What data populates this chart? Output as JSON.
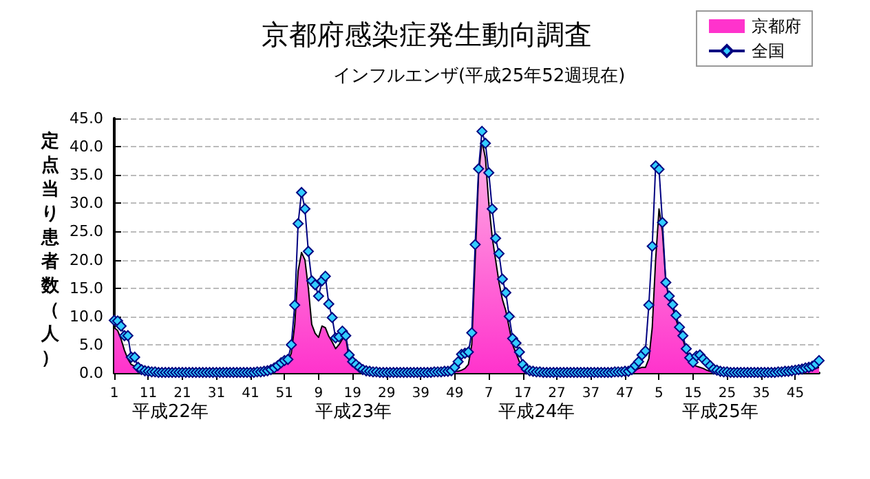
{
  "chart_data": {
    "type": "line",
    "title": "京都府感染症発生動向調査",
    "subtitle": "インフルエンザ(平成25年52週現在)",
    "ylabel": "定点当り患者数（人）",
    "annotations": [
      "平成22年",
      "平成23年",
      "平成24年",
      "平成25年"
    ],
    "categories": [
      "1",
      null,
      null,
      null,
      null,
      null,
      null,
      null,
      null,
      null,
      "11",
      null,
      null,
      null,
      null,
      null,
      null,
      null,
      null,
      null,
      "21",
      null,
      null,
      null,
      null,
      null,
      null,
      null,
      null,
      null,
      "31",
      null,
      null,
      null,
      null,
      null,
      null,
      null,
      null,
      null,
      "41",
      null,
      null,
      null,
      null,
      null,
      null,
      null,
      null,
      null,
      "51",
      null,
      null,
      null,
      null,
      null,
      null,
      null,
      null,
      null,
      "9",
      null,
      null,
      null,
      null,
      null,
      null,
      null,
      null,
      null,
      "19",
      null,
      null,
      null,
      null,
      null,
      null,
      null,
      null,
      null,
      "29",
      null,
      null,
      null,
      null,
      null,
      null,
      null,
      null,
      null,
      "39",
      null,
      null,
      null,
      null,
      null,
      null,
      null,
      null,
      null,
      "49",
      null,
      null,
      null,
      null,
      null,
      null,
      null,
      null,
      null,
      "7",
      null,
      null,
      null,
      null,
      null,
      null,
      null,
      null,
      null,
      "17",
      null,
      null,
      null,
      null,
      null,
      null,
      null,
      null,
      null,
      "27",
      null,
      null,
      null,
      null,
      null,
      null,
      null,
      null,
      null,
      "37",
      null,
      null,
      null,
      null,
      null,
      null,
      null,
      null,
      null,
      "47",
      null,
      null,
      null,
      null,
      null,
      null,
      null,
      null,
      null,
      "5",
      null,
      null,
      null,
      null,
      null,
      null,
      null,
      null,
      null,
      "15",
      null,
      null,
      null,
      null,
      null,
      null,
      null,
      null,
      null,
      "25",
      null,
      null,
      null,
      null,
      null,
      null,
      null,
      null,
      null,
      "35",
      null,
      null,
      null,
      null,
      null,
      null,
      null,
      null,
      null,
      "45",
      null,
      null,
      null,
      null,
      null,
      null,
      null
    ],
    "series": [
      {
        "name": "京都府",
        "type": "area",
        "color": "#ff33cc",
        "values": [
          8.0,
          7.5,
          6.0,
          4.0,
          2.5,
          1.5,
          1.2,
          0.8,
          0.5,
          0.3,
          0.2,
          0.1,
          0.1,
          0.1,
          0.1,
          0.1,
          0.1,
          0.1,
          0.1,
          0.1,
          0.1,
          0.1,
          0.1,
          0.1,
          0.1,
          0.1,
          0.1,
          0.1,
          0.1,
          0.1,
          0.1,
          0.1,
          0.1,
          0.1,
          0.1,
          0.1,
          0.1,
          0.1,
          0.1,
          0.1,
          0.1,
          0.1,
          0.1,
          0.1,
          0.1,
          0.1,
          0.3,
          0.5,
          0.8,
          1.2,
          1.5,
          2.0,
          3.5,
          8.5,
          18.0,
          21.3,
          20.0,
          15.0,
          8.6,
          7.0,
          6.3,
          8.3,
          8.0,
          6.5,
          5.5,
          4.3,
          5.0,
          6.0,
          6.2,
          2.5,
          1.5,
          0.8,
          0.4,
          0.2,
          0.1,
          0.1,
          0.1,
          0.1,
          0.1,
          0.1,
          0.1,
          0.1,
          0.1,
          0.1,
          0.1,
          0.1,
          0.1,
          0.1,
          0.1,
          0.1,
          0.1,
          0.1,
          0.1,
          0.1,
          0.1,
          0.1,
          0.1,
          0.1,
          0.1,
          0.1,
          0.3,
          0.3,
          0.5,
          0.8,
          1.5,
          5.0,
          20.0,
          35.0,
          41.0,
          38.0,
          30.0,
          24.0,
          20.0,
          16.0,
          13.0,
          11.0,
          8.0,
          5.0,
          3.5,
          2.0,
          0.8,
          0.3,
          0.2,
          0.1,
          0.1,
          0.1,
          0.1,
          0.1,
          0.1,
          0.1,
          0.1,
          0.1,
          0.1,
          0.1,
          0.1,
          0.1,
          0.1,
          0.1,
          0.1,
          0.1,
          0.1,
          0.1,
          0.1,
          0.1,
          0.1,
          0.1,
          0.1,
          0.1,
          0.1,
          0.1,
          0.1,
          0.2,
          0.3,
          0.5,
          0.8,
          1.0,
          1.0,
          2.5,
          8.0,
          20.0,
          29.0,
          25.0,
          16.0,
          13.0,
          11.5,
          9.5,
          7.5,
          6.0,
          4.0,
          2.5,
          1.5,
          1.2,
          1.0,
          0.8,
          0.5,
          0.3,
          0.2,
          0.1,
          0.1,
          0.1,
          0.1,
          0.1,
          0.1,
          0.1,
          0.1,
          0.1,
          0.1,
          0.1,
          0.1,
          0.1,
          0.1,
          0.1,
          0.1,
          0.1,
          0.1,
          0.1,
          0.1,
          0.1,
          0.1,
          0.1,
          0.1,
          0.2,
          0.2,
          0.3,
          0.4,
          0.5,
          0.8,
          1.0
        ]
      },
      {
        "name": "全国",
        "color": "#33ccff",
        "marker": "diamond",
        "values": [
          9.3,
          9.2,
          8.3,
          6.6,
          6.6,
          2.8,
          2.8,
          1.0,
          0.6,
          0.4,
          0.3,
          0.2,
          0.2,
          0.1,
          0.1,
          0.1,
          0.1,
          0.1,
          0.1,
          0.1,
          0.1,
          0.1,
          0.1,
          0.1,
          0.1,
          0.1,
          0.1,
          0.1,
          0.1,
          0.1,
          0.1,
          0.1,
          0.1,
          0.1,
          0.1,
          0.1,
          0.1,
          0.1,
          0.1,
          0.1,
          0.1,
          0.1,
          0.2,
          0.2,
          0.3,
          0.4,
          0.6,
          0.9,
          1.3,
          1.8,
          2.2,
          2.4,
          5.0,
          12.0,
          26.4,
          31.9,
          29.0,
          21.5,
          16.3,
          15.6,
          13.6,
          16.3,
          17.1,
          12.2,
          9.8,
          6.2,
          6.4,
          7.4,
          6.6,
          3.2,
          2.0,
          1.5,
          1.0,
          0.6,
          0.4,
          0.3,
          0.2,
          0.2,
          0.1,
          0.1,
          0.1,
          0.1,
          0.1,
          0.1,
          0.1,
          0.1,
          0.1,
          0.1,
          0.1,
          0.1,
          0.1,
          0.1,
          0.1,
          0.1,
          0.2,
          0.2,
          0.2,
          0.3,
          0.3,
          0.4,
          1.0,
          2.0,
          3.3,
          3.5,
          3.7,
          7.1,
          22.7,
          36.1,
          42.7,
          40.6,
          35.4,
          29.0,
          23.8,
          21.1,
          16.6,
          14.2,
          10.0,
          6.1,
          5.3,
          3.7,
          1.5,
          0.7,
          0.4,
          0.3,
          0.2,
          0.2,
          0.1,
          0.1,
          0.1,
          0.1,
          0.1,
          0.1,
          0.1,
          0.1,
          0.1,
          0.1,
          0.1,
          0.1,
          0.1,
          0.1,
          0.1,
          0.1,
          0.1,
          0.1,
          0.1,
          0.1,
          0.1,
          0.2,
          0.2,
          0.2,
          0.3,
          0.3,
          0.6,
          1.3,
          2.0,
          3.2,
          3.9,
          12.0,
          22.4,
          36.6,
          36.0,
          26.6,
          16.0,
          13.6,
          12.1,
          10.2,
          8.1,
          6.6,
          4.3,
          2.7,
          1.9,
          3.0,
          3.2,
          2.5,
          1.9,
          1.3,
          0.7,
          0.5,
          0.3,
          0.2,
          0.2,
          0.1,
          0.1,
          0.1,
          0.1,
          0.1,
          0.1,
          0.1,
          0.1,
          0.1,
          0.1,
          0.1,
          0.1,
          0.1,
          0.1,
          0.2,
          0.2,
          0.3,
          0.3,
          0.4,
          0.5,
          0.6,
          0.7,
          0.9,
          1.0,
          1.2,
          1.6,
          2.2
        ]
      }
    ],
    "ylim": [
      0,
      45
    ],
    "yticks": [
      {
        "value": 0,
        "label": "0.0"
      },
      {
        "value": 5,
        "label": "5.0"
      },
      {
        "value": 10,
        "label": "10.0"
      },
      {
        "value": 15,
        "label": "15.0"
      },
      {
        "value": 20,
        "label": "20.0"
      },
      {
        "value": 25,
        "label": "25.0"
      },
      {
        "value": 30,
        "label": "30.0"
      },
      {
        "value": 35,
        "label": "35.0"
      },
      {
        "value": 40,
        "label": "40.0"
      },
      {
        "value": 45,
        "label": "45.0"
      }
    ],
    "grid": "y",
    "legend": "top right"
  }
}
